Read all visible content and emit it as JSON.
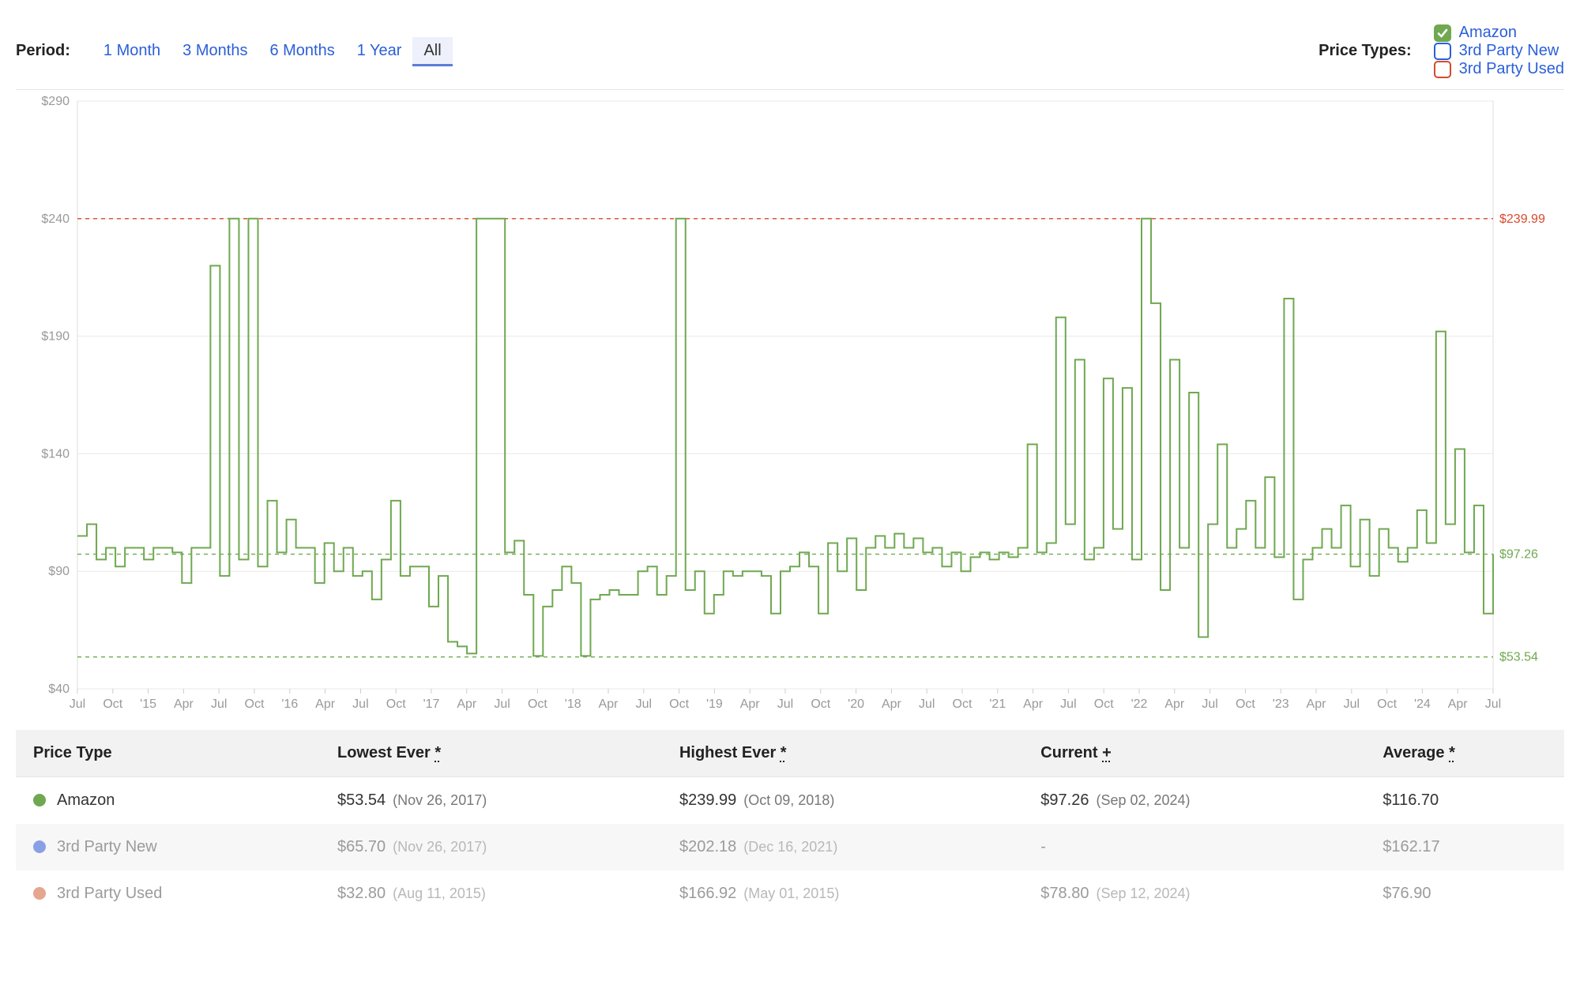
{
  "controls": {
    "period_label": "Period:",
    "periods": [
      {
        "label": "1 Month",
        "active": false
      },
      {
        "label": "3 Months",
        "active": false
      },
      {
        "label": "6 Months",
        "active": false
      },
      {
        "label": "1 Year",
        "active": false
      },
      {
        "label": "All",
        "active": true
      }
    ],
    "price_types_label": "Price Types:",
    "price_types": [
      {
        "label": "Amazon",
        "checked": true,
        "color": "#6fa850"
      },
      {
        "label": "3rd Party New",
        "checked": false,
        "color": "#2b5fd9"
      },
      {
        "label": "3rd Party Used",
        "checked": false,
        "color": "#d64a2e"
      }
    ]
  },
  "chart": {
    "type": "line-step",
    "background_color": "#ffffff",
    "grid_color": "#e8e8e8",
    "axis_text_color": "#999999",
    "series_color": "#6fa850",
    "series_stroke_width": 2,
    "yaxis": {
      "min": 40,
      "max": 290,
      "ticks": [
        40,
        90,
        140,
        190,
        240,
        290
      ],
      "tick_prefix": "$"
    },
    "xaxis": {
      "ticks": [
        "Jul",
        "Oct",
        "'15",
        "Apr",
        "Jul",
        "Oct",
        "'16",
        "Apr",
        "Jul",
        "Oct",
        "'17",
        "Apr",
        "Jul",
        "Oct",
        "'18",
        "Apr",
        "Jul",
        "Oct",
        "'19",
        "Apr",
        "Jul",
        "Oct",
        "'20",
        "Apr",
        "Jul",
        "Oct",
        "'21",
        "Apr",
        "Jul",
        "Oct",
        "'22",
        "Apr",
        "Jul",
        "Oct",
        "'23",
        "Apr",
        "Jul",
        "Oct",
        "'24",
        "Apr",
        "Jul"
      ]
    },
    "reference_lines": [
      {
        "value": 239.99,
        "label": "$239.99",
        "color": "#d64a2e"
      },
      {
        "value": 97.26,
        "label": "$97.26",
        "color": "#6fa850"
      },
      {
        "value": 53.54,
        "label": "$53.54",
        "color": "#6fa850"
      }
    ],
    "series": {
      "name": "Amazon",
      "data": [
        [
          0,
          105
        ],
        [
          1,
          110
        ],
        [
          2,
          95
        ],
        [
          3,
          100
        ],
        [
          4,
          92
        ],
        [
          5,
          100
        ],
        [
          6,
          100
        ],
        [
          7,
          95
        ],
        [
          8,
          100
        ],
        [
          9,
          100
        ],
        [
          10,
          98
        ],
        [
          11,
          85
        ],
        [
          12,
          100
        ],
        [
          13,
          100
        ],
        [
          14,
          220
        ],
        [
          15,
          88
        ],
        [
          16,
          240
        ],
        [
          17,
          95
        ],
        [
          18,
          240
        ],
        [
          19,
          92
        ],
        [
          20,
          120
        ],
        [
          21,
          98
        ],
        [
          22,
          112
        ],
        [
          23,
          100
        ],
        [
          24,
          100
        ],
        [
          25,
          85
        ],
        [
          26,
          102
        ],
        [
          27,
          90
        ],
        [
          28,
          100
        ],
        [
          29,
          88
        ],
        [
          30,
          90
        ],
        [
          31,
          78
        ],
        [
          32,
          95
        ],
        [
          33,
          120
        ],
        [
          34,
          88
        ],
        [
          35,
          92
        ],
        [
          36,
          92
        ],
        [
          37,
          75
        ],
        [
          38,
          88
        ],
        [
          39,
          60
        ],
        [
          40,
          58
        ],
        [
          41,
          55
        ],
        [
          42,
          240
        ],
        [
          43,
          240
        ],
        [
          44,
          240
        ],
        [
          45,
          98
        ],
        [
          46,
          103
        ],
        [
          47,
          80
        ],
        [
          48,
          54
        ],
        [
          49,
          75
        ],
        [
          50,
          82
        ],
        [
          51,
          92
        ],
        [
          52,
          85
        ],
        [
          53,
          54
        ],
        [
          54,
          78
        ],
        [
          55,
          80
        ],
        [
          56,
          82
        ],
        [
          57,
          80
        ],
        [
          58,
          80
        ],
        [
          59,
          90
        ],
        [
          60,
          92
        ],
        [
          61,
          80
        ],
        [
          62,
          88
        ],
        [
          63,
          240
        ],
        [
          64,
          82
        ],
        [
          65,
          90
        ],
        [
          66,
          72
        ],
        [
          67,
          80
        ],
        [
          68,
          90
        ],
        [
          69,
          88
        ],
        [
          70,
          90
        ],
        [
          71,
          90
        ],
        [
          72,
          88
        ],
        [
          73,
          72
        ],
        [
          74,
          90
        ],
        [
          75,
          92
        ],
        [
          76,
          98
        ],
        [
          77,
          92
        ],
        [
          78,
          72
        ],
        [
          79,
          102
        ],
        [
          80,
          90
        ],
        [
          81,
          104
        ],
        [
          82,
          82
        ],
        [
          83,
          100
        ],
        [
          84,
          105
        ],
        [
          85,
          100
        ],
        [
          86,
          106
        ],
        [
          87,
          100
        ],
        [
          88,
          104
        ],
        [
          89,
          98
        ],
        [
          90,
          100
        ],
        [
          91,
          92
        ],
        [
          92,
          98
        ],
        [
          93,
          90
        ],
        [
          94,
          96
        ],
        [
          95,
          98
        ],
        [
          96,
          95
        ],
        [
          97,
          98
        ],
        [
          98,
          96
        ],
        [
          99,
          100
        ],
        [
          100,
          144
        ],
        [
          101,
          98
        ],
        [
          102,
          102
        ],
        [
          103,
          198
        ],
        [
          104,
          110
        ],
        [
          105,
          180
        ],
        [
          106,
          95
        ],
        [
          107,
          100
        ],
        [
          108,
          172
        ],
        [
          109,
          108
        ],
        [
          110,
          168
        ],
        [
          111,
          95
        ],
        [
          112,
          240
        ],
        [
          113,
          204
        ],
        [
          114,
          82
        ],
        [
          115,
          180
        ],
        [
          116,
          100
        ],
        [
          117,
          166
        ],
        [
          118,
          62
        ],
        [
          119,
          110
        ],
        [
          120,
          144
        ],
        [
          121,
          100
        ],
        [
          122,
          108
        ],
        [
          123,
          120
        ],
        [
          124,
          100
        ],
        [
          125,
          130
        ],
        [
          126,
          96
        ],
        [
          127,
          206
        ],
        [
          128,
          78
        ],
        [
          129,
          95
        ],
        [
          130,
          100
        ],
        [
          131,
          108
        ],
        [
          132,
          100
        ],
        [
          133,
          118
        ],
        [
          134,
          92
        ],
        [
          135,
          112
        ],
        [
          136,
          88
        ],
        [
          137,
          108
        ],
        [
          138,
          100
        ],
        [
          139,
          94
        ],
        [
          140,
          100
        ],
        [
          141,
          116
        ],
        [
          142,
          102
        ],
        [
          143,
          192
        ],
        [
          144,
          110
        ],
        [
          145,
          142
        ],
        [
          146,
          98
        ],
        [
          147,
          118
        ],
        [
          148,
          72
        ],
        [
          149,
          97.26
        ]
      ]
    }
  },
  "table": {
    "headers": {
      "price_type": "Price Type",
      "lowest": "Lowest Ever",
      "highest": "Highest Ever",
      "current": "Current",
      "average": "Average",
      "lowest_suffix": "*",
      "highest_suffix": "*",
      "current_suffix": "+",
      "average_suffix": "*"
    },
    "rows": [
      {
        "name": "Amazon",
        "dot_color": "#6fa850",
        "muted": false,
        "lowest": "$53.54",
        "lowest_date": "(Nov 26, 2017)",
        "highest": "$239.99",
        "highest_date": "(Oct 09, 2018)",
        "current": "$97.26",
        "current_date": "(Sep 02, 2024)",
        "average": "$116.70"
      },
      {
        "name": "3rd Party New",
        "dot_color": "#8aa0e6",
        "muted": true,
        "lowest": "$65.70",
        "lowest_date": "(Nov 26, 2017)",
        "highest": "$202.18",
        "highest_date": "(Dec 16, 2021)",
        "current": "-",
        "current_date": "",
        "average": "$162.17"
      },
      {
        "name": "3rd Party Used",
        "dot_color": "#e6a58f",
        "muted": true,
        "lowest": "$32.80",
        "lowest_date": "(Aug 11, 2015)",
        "highest": "$166.92",
        "highest_date": "(May 01, 2015)",
        "current": "$78.80",
        "current_date": "(Sep 12, 2024)",
        "average": "$76.90"
      }
    ]
  }
}
